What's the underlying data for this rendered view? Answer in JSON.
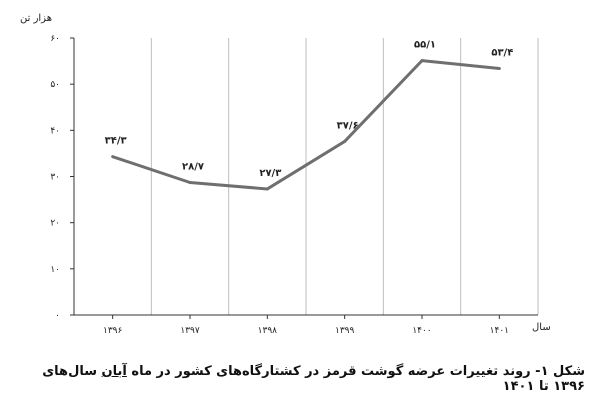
{
  "chart_data": {
    "type": "line",
    "categories": [
      "۱۳۹۶",
      "۱۳۹۷",
      "۱۳۹۸",
      "۱۳۹۹",
      "۱۴۰۰",
      "۱۴۰۱"
    ],
    "x": [
      1396,
      1397,
      1398,
      1399,
      1400,
      1401
    ],
    "values": [
      34.3,
      28.7,
      27.3,
      37.6,
      55.1,
      53.4
    ],
    "data_labels": [
      "۳۴/۳",
      "۲۸/۷",
      "۲۷/۳",
      "۳۷/۶",
      "۵۵/۱",
      "۵۳/۴"
    ],
    "ylim": [
      0,
      60
    ],
    "yticks": [
      0,
      10,
      20,
      30,
      40,
      50,
      60
    ],
    "ytick_labels": [
      "۰",
      "۱۰",
      "۲۰",
      "۳۰",
      "۴۰",
      "۵۰",
      "۶۰"
    ],
    "ylabel": "هزار تن",
    "xlabel": "سال",
    "grid": "vertical",
    "line_color": "#6f6f6f",
    "grid_color": "#bdbdbd"
  },
  "caption": {
    "prefix": "شکل ۱- روند تغییرات عرضه گوشت قرمز در کشتارگاه‌های کشور در ماه ",
    "underlined": "آبان",
    "suffix": " سال‌های ۱۳۹۶ تا ۱۴۰۱"
  }
}
